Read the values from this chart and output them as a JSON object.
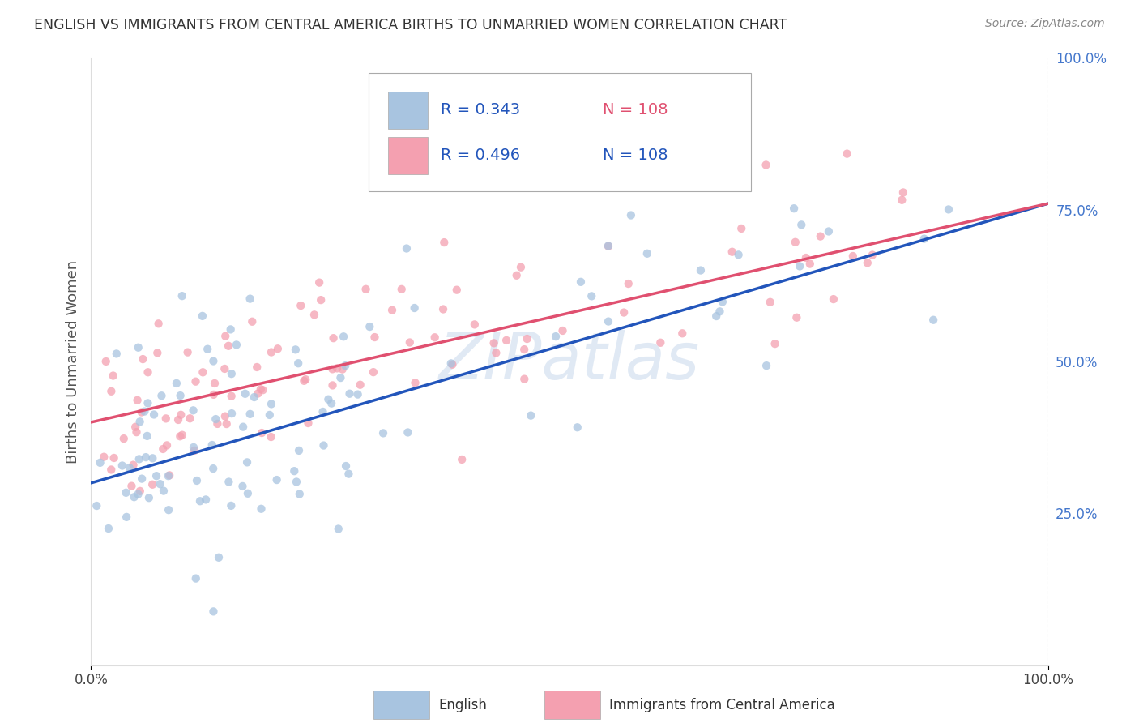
{
  "title": "ENGLISH VS IMMIGRANTS FROM CENTRAL AMERICA BIRTHS TO UNMARRIED WOMEN CORRELATION CHART",
  "source": "Source: ZipAtlas.com",
  "ylabel": "Births to Unmarried Women",
  "xlim": [
    0,
    1
  ],
  "ylim": [
    0,
    1
  ],
  "legend_labels": [
    "English",
    "Immigrants from Central America"
  ],
  "r_english": 0.343,
  "n_english": 108,
  "r_immigrants": 0.496,
  "n_immigrants": 108,
  "english_color": "#a8c4e0",
  "immigrants_color": "#f4a0b0",
  "english_line_color": "#2255bb",
  "immigrants_line_color": "#e05070",
  "english_line_style": "solid",
  "immigrants_line_style": "solid",
  "watermark_text": "ZIPatlas",
  "background_color": "#ffffff",
  "grid_color": "#cccccc",
  "title_color": "#333333",
  "axis_label_color": "#4477cc",
  "legend_r_color": "#2255bb",
  "legend_n_color": "#e05070",
  "right_ytick_color": "#4477cc",
  "eng_line_x0": 0.0,
  "eng_line_y0": 0.3,
  "eng_line_x1": 1.0,
  "eng_line_y1": 0.76,
  "imm_line_x0": 0.0,
  "imm_line_y0": 0.4,
  "imm_line_x1": 1.0,
  "imm_line_y1": 0.76
}
